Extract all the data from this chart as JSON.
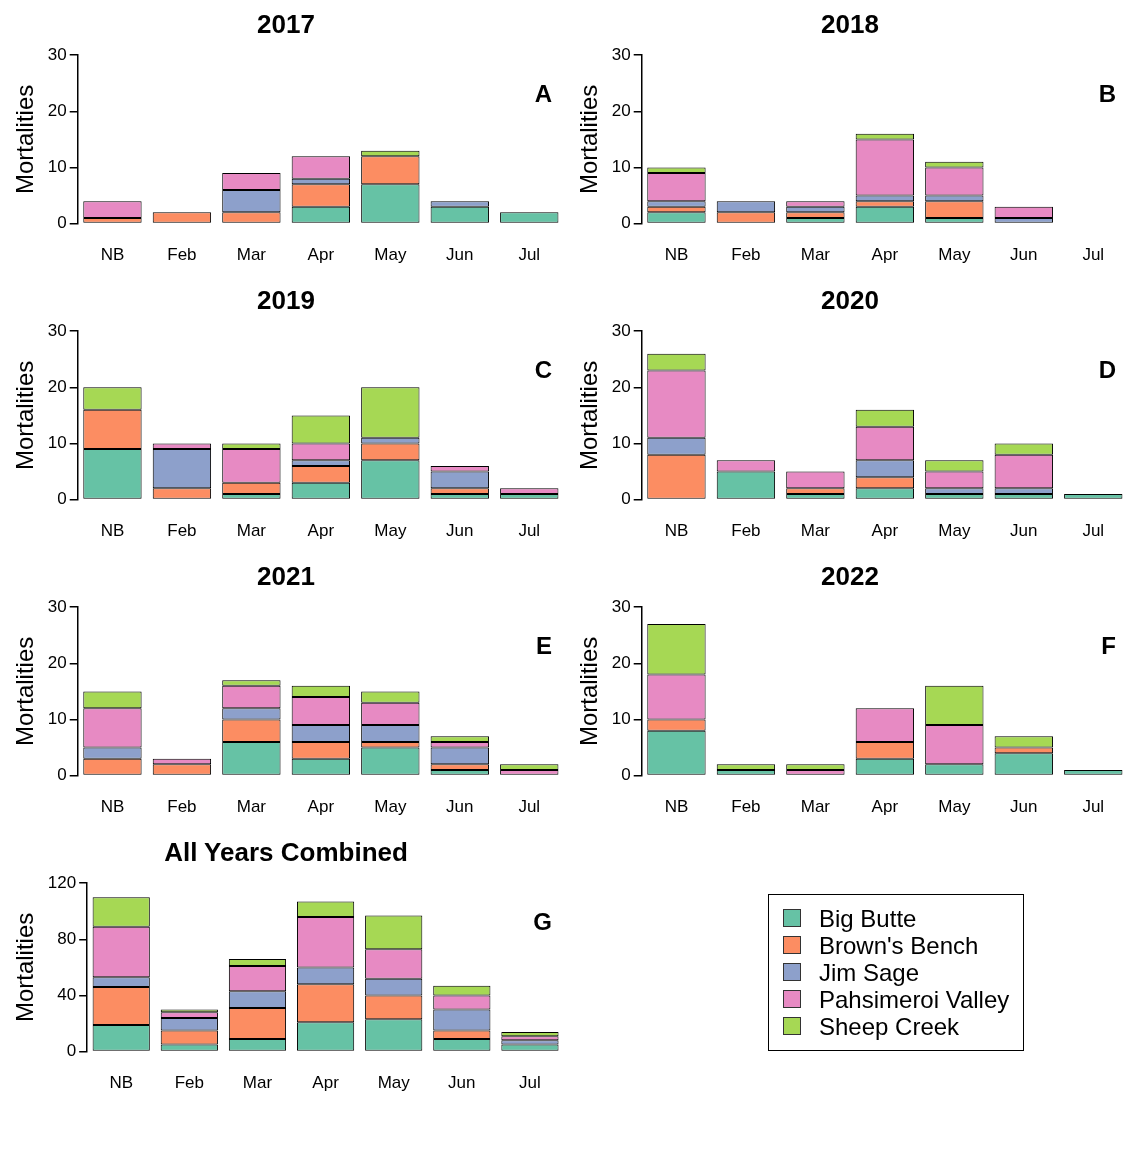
{
  "chart_data": [
    {
      "type": "bar",
      "stacked": true,
      "title": "2017",
      "ylabel": "Mortalities",
      "categories": [
        "NB",
        "Feb",
        "Mar",
        "Apr",
        "May",
        "Jun",
        "Jul"
      ],
      "ylim": [
        0,
        30
      ],
      "yticks": [
        0,
        10,
        20,
        30
      ],
      "grid": false,
      "annotations": [
        "A"
      ],
      "series": [
        {
          "color": "#66c2a5",
          "values": [
            0,
            0,
            0,
            3,
            7,
            3,
            2
          ]
        },
        {
          "color": "#fc8d62",
          "values": [
            1,
            2,
            2,
            4,
            5,
            0,
            0
          ]
        },
        {
          "color": "#8da0cb",
          "values": [
            0,
            0,
            4,
            1,
            0,
            1,
            0
          ]
        },
        {
          "color": "#e78ac3",
          "values": [
            3,
            0,
            3,
            4,
            0,
            0,
            0
          ]
        },
        {
          "color": "#a6d854",
          "values": [
            0,
            0,
            0,
            0,
            1,
            0,
            0
          ]
        }
      ]
    },
    {
      "type": "bar",
      "stacked": true,
      "title": "2018",
      "ylabel": "Mortalities",
      "categories": [
        "NB",
        "Feb",
        "Mar",
        "Apr",
        "May",
        "Jun",
        "Jul"
      ],
      "ylim": [
        0,
        30
      ],
      "yticks": [
        0,
        10,
        20,
        30
      ],
      "grid": false,
      "annotations": [
        "B"
      ],
      "series": [
        {
          "color": "#66c2a5",
          "values": [
            2,
            0,
            1,
            3,
            1,
            0,
            0
          ]
        },
        {
          "color": "#fc8d62",
          "values": [
            1,
            2,
            1,
            1,
            3,
            0,
            0
          ]
        },
        {
          "color": "#8da0cb",
          "values": [
            1,
            2,
            1,
            1,
            1,
            1,
            0
          ]
        },
        {
          "color": "#e78ac3",
          "values": [
            5,
            0,
            1,
            10,
            5,
            2,
            0
          ]
        },
        {
          "color": "#a6d854",
          "values": [
            1,
            0,
            0,
            1,
            1,
            0,
            0
          ]
        }
      ]
    },
    {
      "type": "bar",
      "stacked": true,
      "title": "2019",
      "ylabel": "Mortalities",
      "categories": [
        "NB",
        "Feb",
        "Mar",
        "Apr",
        "May",
        "Jun",
        "Jul"
      ],
      "ylim": [
        0,
        30
      ],
      "yticks": [
        0,
        10,
        20,
        30
      ],
      "grid": false,
      "annotations": [
        "C"
      ],
      "series": [
        {
          "color": "#66c2a5",
          "values": [
            9,
            0,
            1,
            3,
            7,
            1,
            1
          ]
        },
        {
          "color": "#fc8d62",
          "values": [
            7,
            2,
            2,
            3,
            3,
            1,
            0
          ]
        },
        {
          "color": "#8da0cb",
          "values": [
            0,
            7,
            0,
            1,
            1,
            3,
            0
          ]
        },
        {
          "color": "#e78ac3",
          "values": [
            0,
            1,
            6,
            3,
            0,
            1,
            1
          ]
        },
        {
          "color": "#a6d854",
          "values": [
            4,
            0,
            1,
            5,
            9,
            0,
            0
          ]
        }
      ]
    },
    {
      "type": "bar",
      "stacked": true,
      "title": "2020",
      "ylabel": "Mortalities",
      "categories": [
        "NB",
        "Feb",
        "Mar",
        "Apr",
        "May",
        "Jun",
        "Jul"
      ],
      "ylim": [
        0,
        30
      ],
      "yticks": [
        0,
        10,
        20,
        30
      ],
      "grid": false,
      "annotations": [
        "D"
      ],
      "series": [
        {
          "color": "#66c2a5",
          "values": [
            0,
            5,
            1,
            2,
            1,
            1,
            1
          ]
        },
        {
          "color": "#fc8d62",
          "values": [
            8,
            0,
            1,
            2,
            0,
            0,
            0
          ]
        },
        {
          "color": "#8da0cb",
          "values": [
            3,
            0,
            0,
            3,
            1,
            1,
            0
          ]
        },
        {
          "color": "#e78ac3",
          "values": [
            12,
            2,
            3,
            6,
            3,
            6,
            0
          ]
        },
        {
          "color": "#a6d854",
          "values": [
            3,
            0,
            0,
            3,
            2,
            2,
            0
          ]
        }
      ]
    },
    {
      "type": "bar",
      "stacked": true,
      "title": "2021",
      "ylabel": "Mortalities",
      "categories": [
        "NB",
        "Feb",
        "Mar",
        "Apr",
        "May",
        "Jun",
        "Jul"
      ],
      "ylim": [
        0,
        30
      ],
      "yticks": [
        0,
        10,
        20,
        30
      ],
      "grid": false,
      "annotations": [
        "E"
      ],
      "series": [
        {
          "color": "#66c2a5",
          "values": [
            0,
            0,
            6,
            3,
            5,
            1,
            0
          ]
        },
        {
          "color": "#fc8d62",
          "values": [
            3,
            2,
            4,
            3,
            1,
            1,
            0
          ]
        },
        {
          "color": "#8da0cb",
          "values": [
            2,
            0,
            2,
            3,
            3,
            3,
            0
          ]
        },
        {
          "color": "#e78ac3",
          "values": [
            7,
            1,
            4,
            5,
            4,
            1,
            1
          ]
        },
        {
          "color": "#a6d854",
          "values": [
            3,
            0,
            1,
            2,
            2,
            1,
            1
          ]
        }
      ]
    },
    {
      "type": "bar",
      "stacked": true,
      "title": "2022",
      "ylabel": "Mortalities",
      "categories": [
        "NB",
        "Feb",
        "Mar",
        "Apr",
        "May",
        "Jun",
        "Jul"
      ],
      "ylim": [
        0,
        30
      ],
      "yticks": [
        0,
        10,
        20,
        30
      ],
      "grid": false,
      "annotations": [
        "F"
      ],
      "series": [
        {
          "color": "#66c2a5",
          "values": [
            8,
            1,
            0,
            3,
            2,
            4,
            1
          ]
        },
        {
          "color": "#fc8d62",
          "values": [
            2,
            0,
            0,
            3,
            0,
            1,
            0
          ]
        },
        {
          "color": "#8da0cb",
          "values": [
            0,
            0,
            0,
            0,
            0,
            0,
            0
          ]
        },
        {
          "color": "#e78ac3",
          "values": [
            8,
            0,
            1,
            6,
            7,
            0,
            0
          ]
        },
        {
          "color": "#a6d854",
          "values": [
            9,
            1,
            1,
            0,
            7,
            2,
            0
          ]
        }
      ]
    },
    {
      "type": "bar",
      "stacked": true,
      "title": "All Years Combined",
      "ylabel": "Mortalities",
      "categories": [
        "NB",
        "Feb",
        "Mar",
        "Apr",
        "May",
        "Jun",
        "Jul"
      ],
      "ylim": [
        0,
        120
      ],
      "yticks": [
        0,
        40,
        80,
        120
      ],
      "grid": false,
      "annotations": [
        "G"
      ],
      "legend": "right",
      "series": [
        {
          "name": "Big Butte",
          "color": "#66c2a5",
          "values": [
            19,
            5,
            9,
            21,
            23,
            9,
            5
          ]
        },
        {
          "name": "Brown's Bench",
          "color": "#fc8d62",
          "values": [
            27,
            10,
            22,
            27,
            17,
            6,
            0
          ]
        },
        {
          "name": "Jim Sage",
          "color": "#8da0cb",
          "values": [
            7,
            9,
            12,
            12,
            12,
            15,
            3
          ]
        },
        {
          "name": "Pahsimeroi Valley",
          "color": "#e78ac3",
          "values": [
            36,
            4,
            18,
            36,
            21,
            10,
            3
          ]
        },
        {
          "name": "Sheep Creek",
          "color": "#a6d854",
          "values": [
            21,
            2,
            5,
            11,
            24,
            7,
            3
          ]
        }
      ]
    }
  ]
}
